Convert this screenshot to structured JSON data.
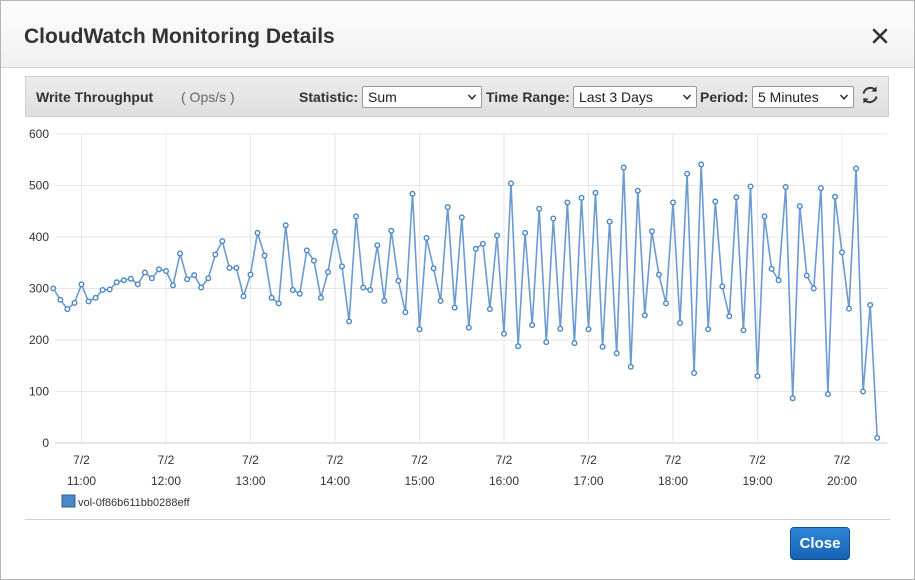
{
  "dialog": {
    "title": "CloudWatch Monitoring Details",
    "close_button_label": "Close"
  },
  "toolbar": {
    "metric_name": "Write Throughput",
    "unit": "( Ops/s )",
    "statistic_label": "Statistic:",
    "statistic_value": "Sum",
    "time_range_label": "Time Range:",
    "time_range_value": "Last 3 Days",
    "period_label": "Period:",
    "period_value": "5 Minutes"
  },
  "colors": {
    "series": "#4a86c8",
    "series_line": "#6b9bd1",
    "button": "#1f73c7"
  },
  "chart_data": {
    "type": "line",
    "ylim": [
      0,
      600
    ],
    "y_ticks": [
      0,
      100,
      200,
      300,
      400,
      500,
      600
    ],
    "x_ticks": [
      {
        "date": "7/2",
        "time": "11:00"
      },
      {
        "date": "7/2",
        "time": "12:00"
      },
      {
        "date": "7/2",
        "time": "13:00"
      },
      {
        "date": "7/2",
        "time": "14:00"
      },
      {
        "date": "7/2",
        "time": "15:00"
      },
      {
        "date": "7/2",
        "time": "16:00"
      },
      {
        "date": "7/2",
        "time": "17:00"
      },
      {
        "date": "7/2",
        "time": "18:00"
      },
      {
        "date": "7/2",
        "time": "19:00"
      },
      {
        "date": "7/2",
        "time": "20:00"
      }
    ],
    "x_start": "10:35",
    "interval_minutes": 5,
    "grid": true,
    "legend_position": "bottom-left",
    "series": [
      {
        "name": "vol-0f86b611bb0288eff",
        "values": [
          285,
          300,
          278,
          260,
          272,
          308,
          275,
          282,
          297,
          298,
          312,
          316,
          319,
          308,
          331,
          320,
          337,
          334,
          306,
          368,
          318,
          326,
          302,
          320,
          366,
          392,
          340,
          340,
          285,
          327,
          408,
          364,
          282,
          271,
          423,
          297,
          290,
          374,
          354,
          282,
          332,
          410,
          343,
          236,
          440,
          302,
          297,
          384,
          276,
          412,
          315,
          254,
          484,
          221,
          398,
          339,
          276,
          458,
          263,
          438,
          224,
          377,
          387,
          260,
          403,
          212,
          504,
          188,
          408,
          229,
          455,
          196,
          436,
          222,
          467,
          194,
          476,
          221,
          486,
          187,
          430,
          174,
          535,
          148,
          490,
          248,
          411,
          327,
          271,
          467,
          233,
          523,
          136,
          541,
          221,
          469,
          304,
          246,
          477,
          219,
          498,
          130,
          440,
          338,
          316,
          497,
          87,
          460,
          325,
          300,
          495,
          95,
          478,
          370,
          261,
          533,
          100,
          268,
          10
        ]
      }
    ]
  }
}
